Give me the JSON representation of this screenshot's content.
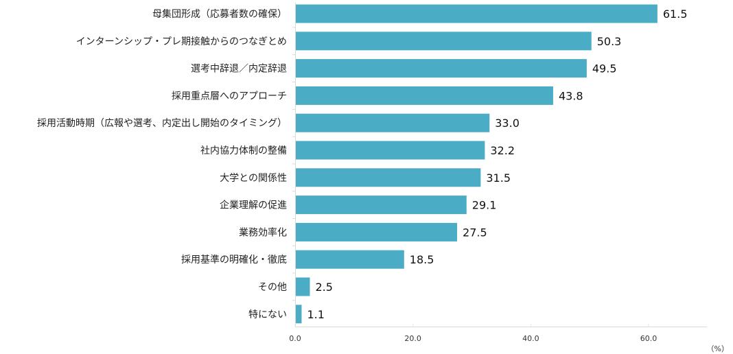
{
  "chart_data": {
    "type": "bar",
    "orientation": "horizontal",
    "categories": [
      "母集団形成（応募者数の確保）",
      "インターンシップ・プレ期接触からのつなぎとめ",
      "選考中辞退／内定辞退",
      "採用重点層へのアプローチ",
      "採用活動時期（広報や選考、内定出し開始のタイミング）",
      "社内協力体制の整備",
      "大学との関係性",
      "企業理解の促進",
      "業務効率化",
      "採用基準の明確化・徹底",
      "その他",
      "特にない"
    ],
    "values": [
      61.5,
      50.3,
      49.5,
      43.8,
      33.0,
      32.2,
      31.5,
      29.1,
      27.5,
      18.5,
      2.5,
      1.1
    ],
    "value_labels": [
      "61.5",
      "50.3",
      "49.5",
      "43.8",
      "33.0",
      "32.2",
      "31.5",
      "29.1",
      "27.5",
      "18.5",
      "2.5",
      "1.1"
    ],
    "xlim": [
      0,
      70
    ],
    "x_ticks": [
      "0.0",
      "20.0",
      "40.0",
      "60.0"
    ],
    "x_unit": "（%）",
    "title": "",
    "grid": false,
    "bar_color": "#4bacc6"
  }
}
